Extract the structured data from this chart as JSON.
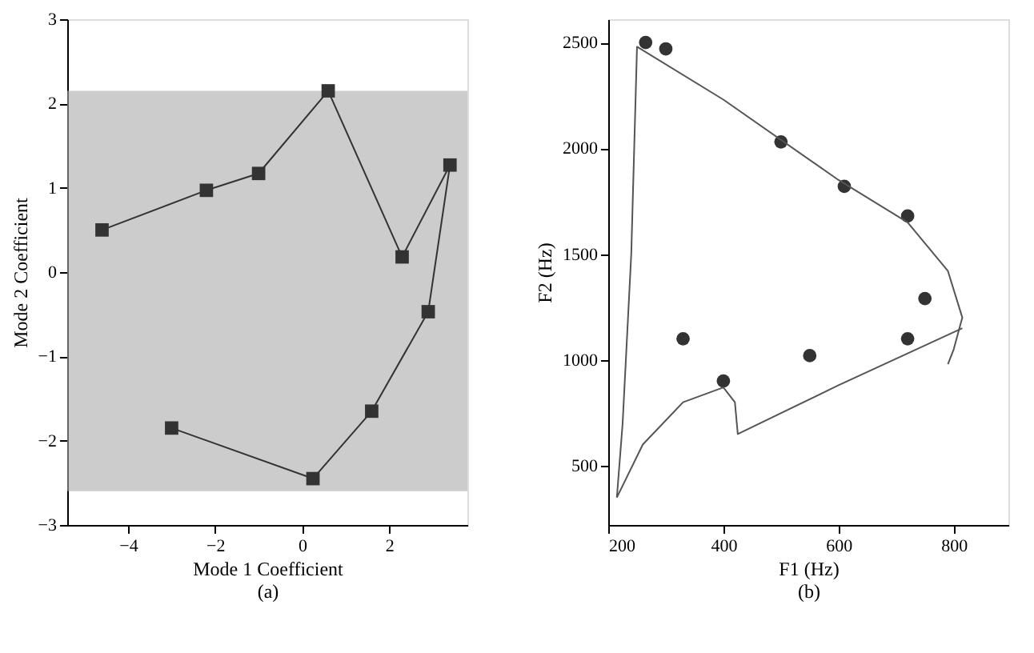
{
  "chart_data": [
    {
      "type": "line",
      "xlabel": "Mode 1 Coefficient",
      "annotations": [
        "(a)"
      ],
      "ylabel": "Mode 2 Coefficient",
      "xlim": [
        -5.4,
        3.8
      ],
      "ylim": [
        -3,
        3
      ],
      "xticks": [
        -4,
        -2,
        0,
        2
      ],
      "yticks": [
        -3,
        -2,
        -1,
        0,
        1,
        2,
        3
      ],
      "grid": false,
      "marker": "square",
      "series": [
        {
          "color": "#333333",
          "x": [
            -4.6,
            -2.2,
            -1.0,
            0.6,
            2.3,
            3.4,
            2.9,
            1.6,
            0.25,
            -3.0
          ],
          "values": [
            0.5,
            0.97,
            1.17,
            2.15,
            0.18,
            1.27,
            -0.47,
            -1.65,
            -2.45,
            -1.85
          ]
        }
      ],
      "bands": [
        {
          "axis": "y",
          "from": -2.6,
          "to": 2.15,
          "color": "#aaaaaa"
        }
      ]
    },
    {
      "type": "scatter",
      "xlabel": "F1 (Hz)",
      "ylabel": "F2 (Hz)",
      "annotations": [
        "(b)"
      ],
      "xlim": [
        200,
        895
      ],
      "ylim": [
        220,
        2610
      ],
      "xticks": [
        200,
        400,
        600,
        800
      ],
      "yticks": [
        500,
        1000,
        1500,
        2000,
        2500
      ],
      "grid": false,
      "series": [
        {
          "type": "scatter",
          "marker": "circle",
          "color": "#333333",
          "x": [
            265,
            300,
            500,
            610,
            720,
            750,
            720,
            550,
            330,
            400
          ],
          "values": [
            2500,
            2470,
            2030,
            1820,
            1680,
            1290,
            1100,
            1020,
            1100,
            900
          ]
        },
        {
          "type": "line",
          "color": "#555555",
          "x": [
            215,
            225,
            240,
            250,
            400,
            600,
            720,
            790,
            815,
            800,
            790
          ],
          "values": [
            350,
            700,
            1500,
            2480,
            2230,
            1850,
            1650,
            1420,
            1200,
            1050,
            980
          ]
        },
        {
          "type": "line",
          "color": "#555555",
          "x": [
            215,
            260,
            330,
            400,
            420,
            425,
            600,
            815
          ],
          "values": [
            350,
            600,
            800,
            870,
            800,
            650,
            880,
            1150
          ]
        }
      ]
    }
  ]
}
